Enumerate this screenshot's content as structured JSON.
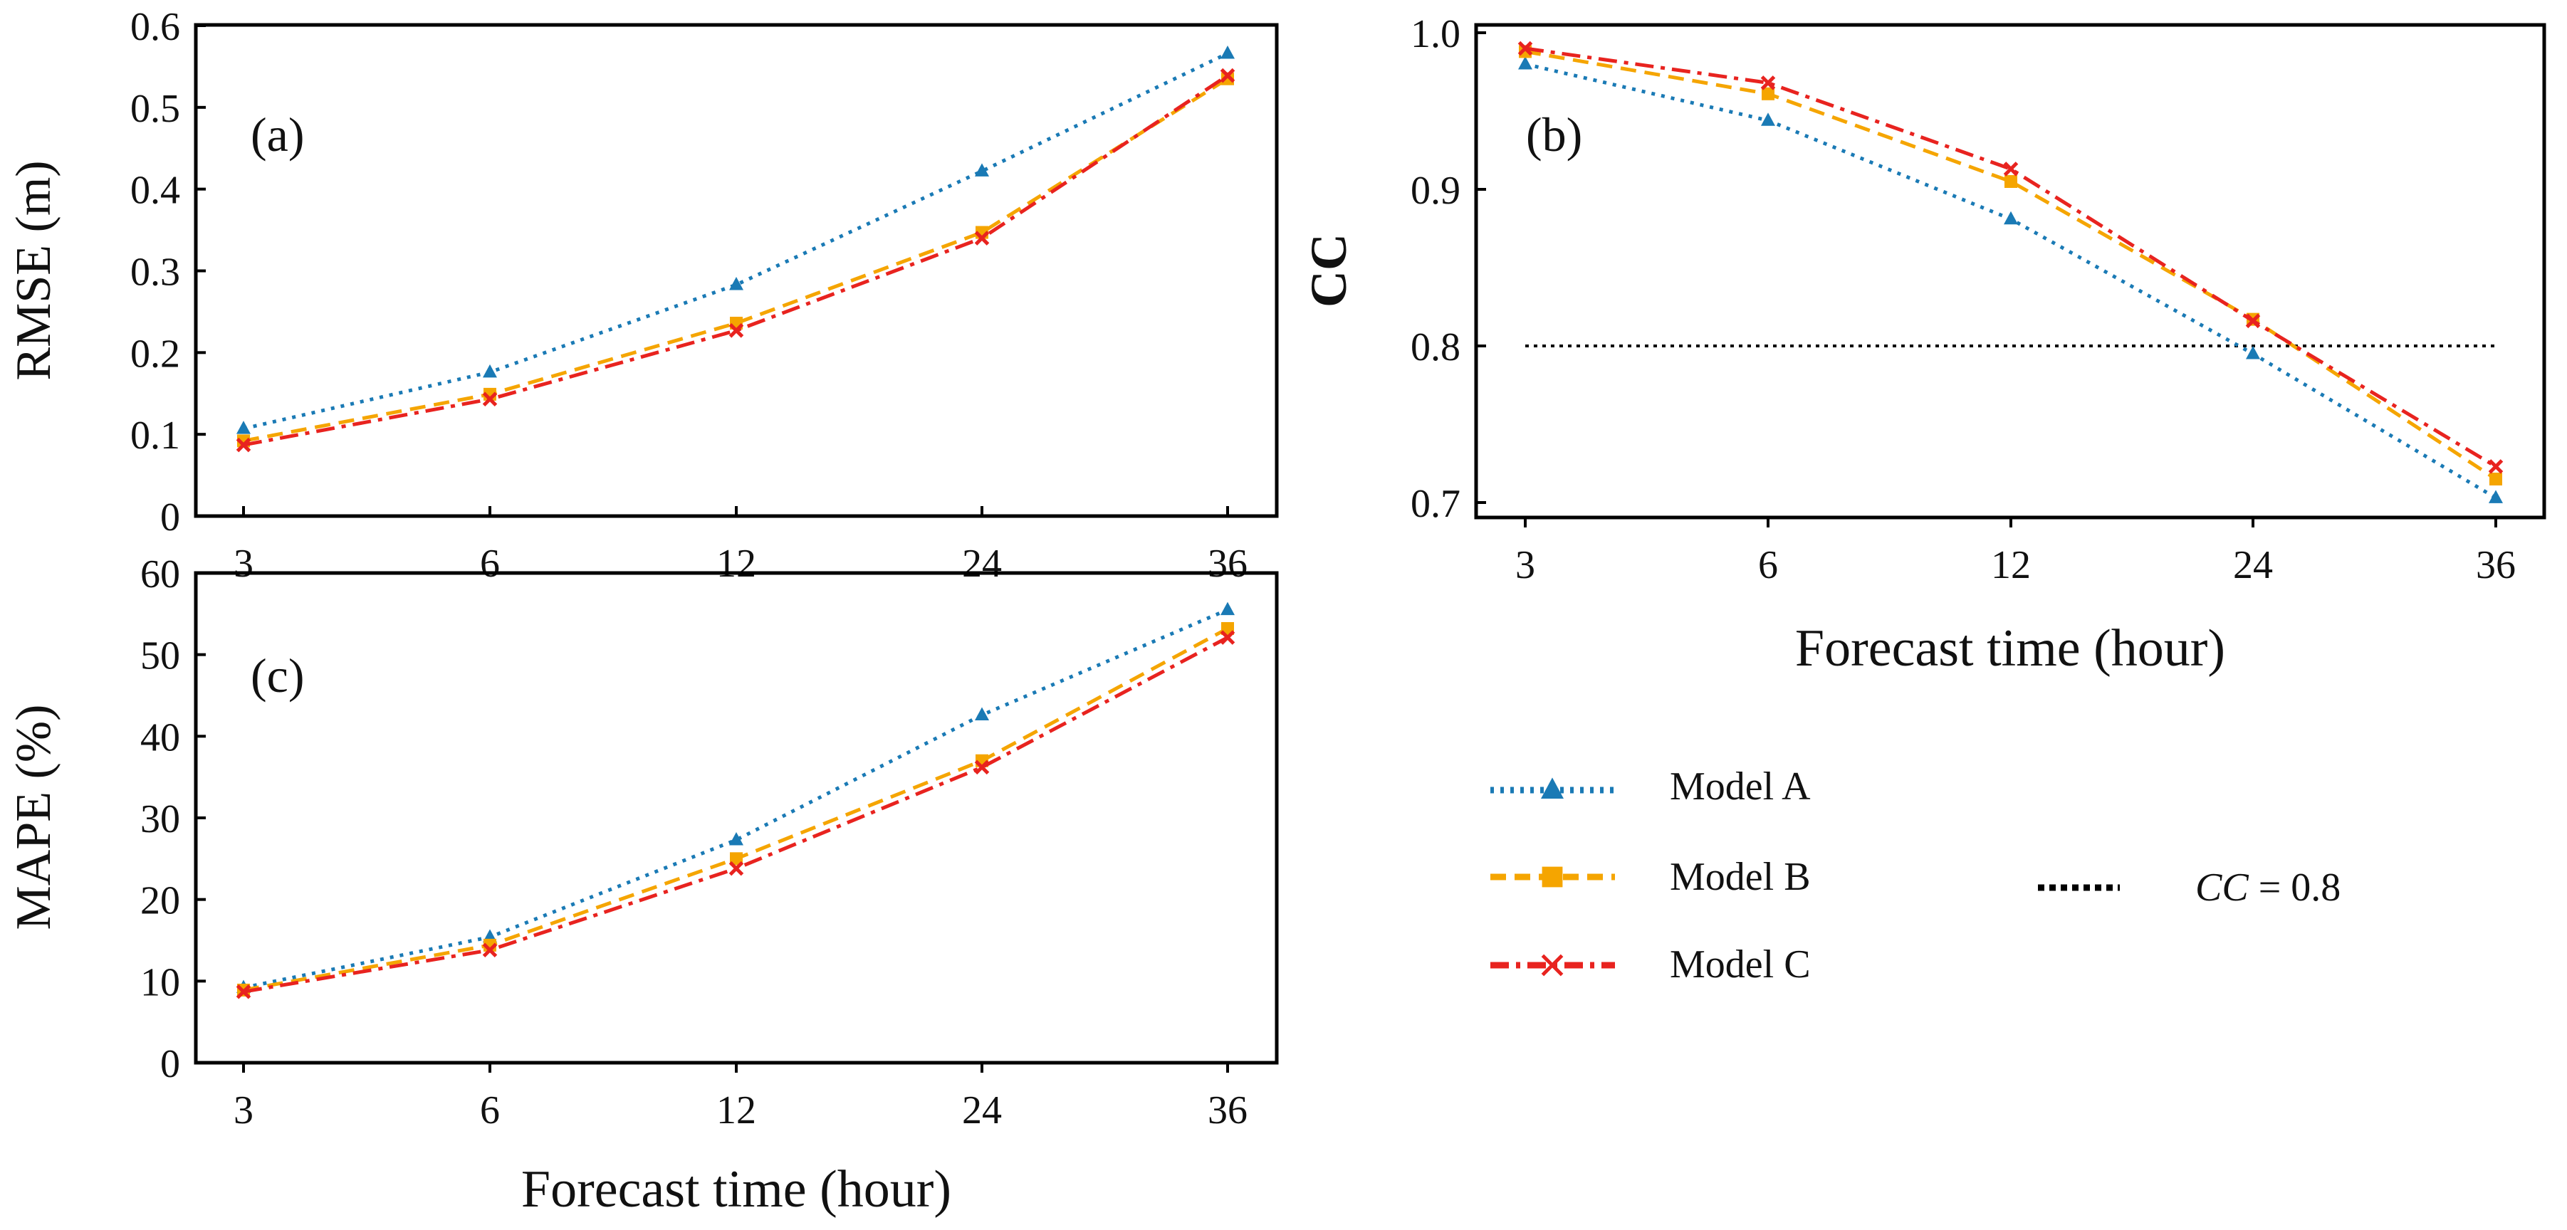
{
  "figure": {
    "xlabel": "Forecast time (hour)",
    "categories": [
      "3",
      "6",
      "12",
      "24",
      "36"
    ]
  },
  "series_styles": {
    "Model A": {
      "color": "#1a7ab5",
      "marker": "triangle",
      "dash": "dotted"
    },
    "Model B": {
      "color": "#f5a500",
      "marker": "square",
      "dash": "dashed"
    },
    "Model C": {
      "color": "#e8231f",
      "marker": "x",
      "dash": "dashdot"
    }
  },
  "legend": {
    "items": [
      {
        "label": "Model A",
        "series": "Model A"
      },
      {
        "label": "Model B",
        "series": "Model B"
      },
      {
        "label": "Model C",
        "series": "Model C"
      }
    ],
    "reference_label_italic": "CC",
    "reference_label_rest": " = 0.8"
  },
  "chart_data": [
    {
      "id": "a",
      "type": "line",
      "panel_label": "(a)",
      "ylabel": "RMSE (m)",
      "xlabel": "",
      "categories": [
        "3",
        "6",
        "12",
        "24",
        "36"
      ],
      "ylim": [
        0,
        0.6
      ],
      "yticks": [
        "0",
        "0.1",
        "0.2",
        "0.3",
        "0.4",
        "0.5",
        "0.6"
      ],
      "series": [
        {
          "name": "Model A",
          "values": [
            0.107,
            0.176,
            0.283,
            0.422,
            0.566
          ]
        },
        {
          "name": "Model B",
          "values": [
            0.092,
            0.149,
            0.236,
            0.347,
            0.535
          ]
        },
        {
          "name": "Model C",
          "values": [
            0.087,
            0.143,
            0.227,
            0.34,
            0.539
          ]
        }
      ]
    },
    {
      "id": "b",
      "type": "line",
      "panel_label": "(b)",
      "ylabel": "CC",
      "xlabel": "Forecast time (hour)",
      "categories": [
        "3",
        "6",
        "12",
        "24",
        "36"
      ],
      "ylim": [
        0.7,
        1.0
      ],
      "yticks": [
        "0.7",
        "0.8",
        "0.9",
        "1.0"
      ],
      "reference_line": {
        "y": 0.8,
        "label": "CC = 0.8"
      },
      "series": [
        {
          "name": "Model A",
          "values": [
            0.98,
            0.944,
            0.881,
            0.795,
            0.703
          ]
        },
        {
          "name": "Model B",
          "values": [
            0.988,
            0.961,
            0.905,
            0.817,
            0.715
          ]
        },
        {
          "name": "Model C",
          "values": [
            0.99,
            0.968,
            0.913,
            0.816,
            0.723
          ]
        }
      ]
    },
    {
      "id": "c",
      "type": "line",
      "panel_label": "(c)",
      "ylabel": "MAPE (%)",
      "xlabel": "Forecast time (hour)",
      "categories": [
        "3",
        "6",
        "12",
        "24",
        "36"
      ],
      "ylim": [
        0,
        60
      ],
      "yticks": [
        "0",
        "10",
        "20",
        "30",
        "40",
        "50",
        "60"
      ],
      "series": [
        {
          "name": "Model A",
          "values": [
            9.2,
            15.4,
            27.3,
            42.6,
            55.5
          ]
        },
        {
          "name": "Model B",
          "values": [
            8.9,
            14.4,
            25.0,
            37.0,
            53.2
          ]
        },
        {
          "name": "Model C",
          "values": [
            8.7,
            13.8,
            23.8,
            36.2,
            52.1
          ]
        }
      ]
    }
  ]
}
